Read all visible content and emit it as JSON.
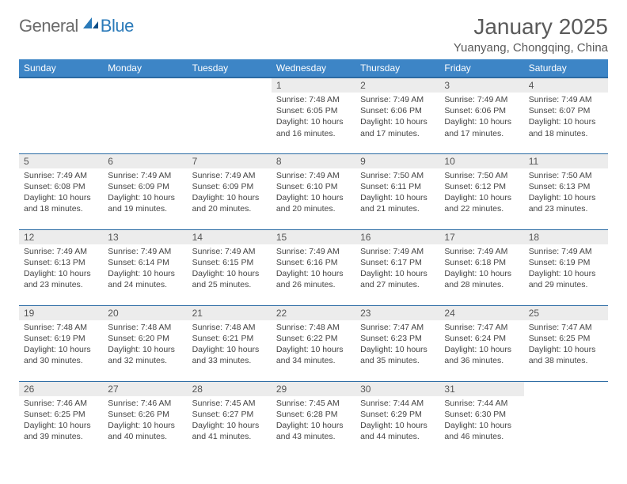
{
  "brand": {
    "text1": "General",
    "text2": "Blue"
  },
  "title": "January 2025",
  "location": "Yuanyang, Chongqing, China",
  "colors": {
    "header_bg": "#3d85c6",
    "header_border": "#2a6aa3",
    "daynum_bg": "#ececec",
    "text": "#444444",
    "brand_grey": "#6b6b6b",
    "brand_blue": "#2a7ab9"
  },
  "weekdays": [
    "Sunday",
    "Monday",
    "Tuesday",
    "Wednesday",
    "Thursday",
    "Friday",
    "Saturday"
  ],
  "weeks": [
    [
      null,
      null,
      null,
      {
        "n": "1",
        "sr": "7:48 AM",
        "ss": "6:05 PM",
        "dl": "10 hours and 16 minutes."
      },
      {
        "n": "2",
        "sr": "7:49 AM",
        "ss": "6:06 PM",
        "dl": "10 hours and 17 minutes."
      },
      {
        "n": "3",
        "sr": "7:49 AM",
        "ss": "6:06 PM",
        "dl": "10 hours and 17 minutes."
      },
      {
        "n": "4",
        "sr": "7:49 AM",
        "ss": "6:07 PM",
        "dl": "10 hours and 18 minutes."
      }
    ],
    [
      {
        "n": "5",
        "sr": "7:49 AM",
        "ss": "6:08 PM",
        "dl": "10 hours and 18 minutes."
      },
      {
        "n": "6",
        "sr": "7:49 AM",
        "ss": "6:09 PM",
        "dl": "10 hours and 19 minutes."
      },
      {
        "n": "7",
        "sr": "7:49 AM",
        "ss": "6:09 PM",
        "dl": "10 hours and 20 minutes."
      },
      {
        "n": "8",
        "sr": "7:49 AM",
        "ss": "6:10 PM",
        "dl": "10 hours and 20 minutes."
      },
      {
        "n": "9",
        "sr": "7:50 AM",
        "ss": "6:11 PM",
        "dl": "10 hours and 21 minutes."
      },
      {
        "n": "10",
        "sr": "7:50 AM",
        "ss": "6:12 PM",
        "dl": "10 hours and 22 minutes."
      },
      {
        "n": "11",
        "sr": "7:50 AM",
        "ss": "6:13 PM",
        "dl": "10 hours and 23 minutes."
      }
    ],
    [
      {
        "n": "12",
        "sr": "7:49 AM",
        "ss": "6:13 PM",
        "dl": "10 hours and 23 minutes."
      },
      {
        "n": "13",
        "sr": "7:49 AM",
        "ss": "6:14 PM",
        "dl": "10 hours and 24 minutes."
      },
      {
        "n": "14",
        "sr": "7:49 AM",
        "ss": "6:15 PM",
        "dl": "10 hours and 25 minutes."
      },
      {
        "n": "15",
        "sr": "7:49 AM",
        "ss": "6:16 PM",
        "dl": "10 hours and 26 minutes."
      },
      {
        "n": "16",
        "sr": "7:49 AM",
        "ss": "6:17 PM",
        "dl": "10 hours and 27 minutes."
      },
      {
        "n": "17",
        "sr": "7:49 AM",
        "ss": "6:18 PM",
        "dl": "10 hours and 28 minutes."
      },
      {
        "n": "18",
        "sr": "7:49 AM",
        "ss": "6:19 PM",
        "dl": "10 hours and 29 minutes."
      }
    ],
    [
      {
        "n": "19",
        "sr": "7:48 AM",
        "ss": "6:19 PM",
        "dl": "10 hours and 30 minutes."
      },
      {
        "n": "20",
        "sr": "7:48 AM",
        "ss": "6:20 PM",
        "dl": "10 hours and 32 minutes."
      },
      {
        "n": "21",
        "sr": "7:48 AM",
        "ss": "6:21 PM",
        "dl": "10 hours and 33 minutes."
      },
      {
        "n": "22",
        "sr": "7:48 AM",
        "ss": "6:22 PM",
        "dl": "10 hours and 34 minutes."
      },
      {
        "n": "23",
        "sr": "7:47 AM",
        "ss": "6:23 PM",
        "dl": "10 hours and 35 minutes."
      },
      {
        "n": "24",
        "sr": "7:47 AM",
        "ss": "6:24 PM",
        "dl": "10 hours and 36 minutes."
      },
      {
        "n": "25",
        "sr": "7:47 AM",
        "ss": "6:25 PM",
        "dl": "10 hours and 38 minutes."
      }
    ],
    [
      {
        "n": "26",
        "sr": "7:46 AM",
        "ss": "6:25 PM",
        "dl": "10 hours and 39 minutes."
      },
      {
        "n": "27",
        "sr": "7:46 AM",
        "ss": "6:26 PM",
        "dl": "10 hours and 40 minutes."
      },
      {
        "n": "28",
        "sr": "7:45 AM",
        "ss": "6:27 PM",
        "dl": "10 hours and 41 minutes."
      },
      {
        "n": "29",
        "sr": "7:45 AM",
        "ss": "6:28 PM",
        "dl": "10 hours and 43 minutes."
      },
      {
        "n": "30",
        "sr": "7:44 AM",
        "ss": "6:29 PM",
        "dl": "10 hours and 44 minutes."
      },
      {
        "n": "31",
        "sr": "7:44 AM",
        "ss": "6:30 PM",
        "dl": "10 hours and 46 minutes."
      },
      null
    ]
  ],
  "labels": {
    "sunrise": "Sunrise:",
    "sunset": "Sunset:",
    "daylight": "Daylight:"
  }
}
